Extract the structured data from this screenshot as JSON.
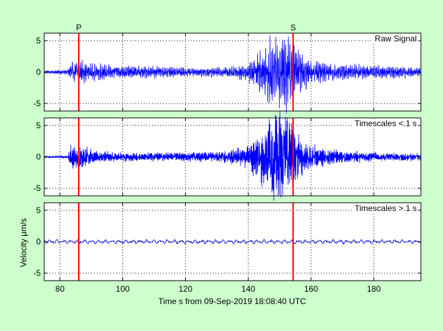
{
  "chart_data": {
    "type": "line",
    "xlim": [
      75,
      195
    ],
    "xticks": [
      80,
      100,
      120,
      140,
      160,
      180
    ],
    "xlabel": "Time s from 09-Sep-2019 18:08:40 UTC",
    "ylabel": "Velocity μm/s",
    "ylim": [
      -6.2,
      6.2
    ],
    "yticks": [
      -5,
      0,
      5
    ],
    "grid": true,
    "series_color": "#0000ff",
    "marker_color": "#ff0000",
    "phase_picks": [
      {
        "label": "P",
        "x": 86.0
      },
      {
        "label": "S",
        "x": 154.3
      }
    ],
    "panels": [
      {
        "label": "Raw Signal",
        "x": [
          75,
          80,
          82.5,
          83.5,
          86,
          90,
          95,
          100,
          110,
          120,
          130,
          135,
          140,
          143,
          146,
          148,
          150,
          152,
          154,
          156,
          160,
          165,
          170,
          175,
          180,
          185,
          190,
          195
        ],
        "amp": [
          0.15,
          0.3,
          0.3,
          1.2,
          1.4,
          1.0,
          0.9,
          0.8,
          0.7,
          0.6,
          0.6,
          0.7,
          1.2,
          2.2,
          3.5,
          4.5,
          4.8,
          4.6,
          4.0,
          2.5,
          1.5,
          1.1,
          1.0,
          0.9,
          0.8,
          0.8,
          0.7,
          0.6
        ],
        "wave_period": 0.45,
        "noise": 0.7
      },
      {
        "label": "Timescales <.1 s",
        "x": [
          75,
          80,
          82.5,
          83.5,
          86,
          90,
          95,
          100,
          110,
          120,
          130,
          135,
          140,
          143,
          146,
          148,
          150,
          152,
          154,
          156,
          160,
          165,
          170,
          175,
          180,
          185,
          190,
          195
        ],
        "amp": [
          0.1,
          0.15,
          0.15,
          1.3,
          1.4,
          0.8,
          0.6,
          0.5,
          0.45,
          0.5,
          0.6,
          0.8,
          1.3,
          2.3,
          3.6,
          4.6,
          4.9,
          4.6,
          3.8,
          2.3,
          1.3,
          0.9,
          0.7,
          0.6,
          0.5,
          0.5,
          0.45,
          0.4
        ],
        "wave_period": 0.2,
        "noise": 0.9
      },
      {
        "label": "Timescales >.1 s",
        "x": [
          75,
          195
        ],
        "amp": [
          0.35,
          0.35
        ],
        "wave_period": 2.2,
        "noise": 0.25
      }
    ]
  }
}
